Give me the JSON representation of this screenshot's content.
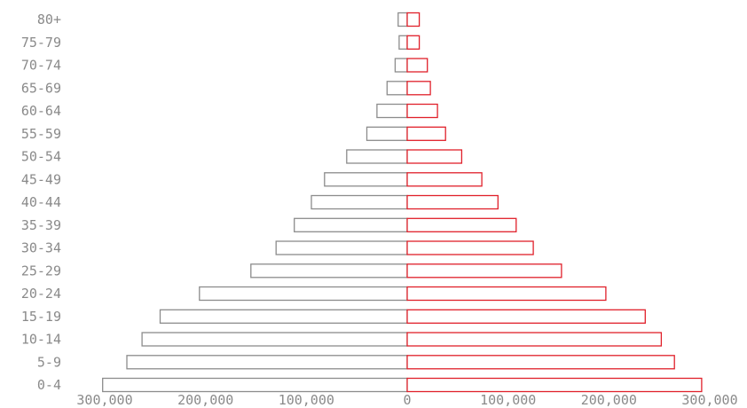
{
  "chart_data": {
    "type": "bar",
    "orientation": "horizontal",
    "layout": "population-pyramid",
    "categories": [
      "0-4",
      "5-9",
      "10-14",
      "15-19",
      "20-24",
      "25-29",
      "30-34",
      "35-39",
      "40-44",
      "45-49",
      "50-54",
      "55-59",
      "60-64",
      "65-69",
      "70-74",
      "75-79",
      "80+"
    ],
    "series": [
      {
        "side": "left",
        "color": "#8c8c8c",
        "values": [
          302000,
          278000,
          263000,
          245000,
          206000,
          155000,
          130000,
          112000,
          95000,
          82000,
          60000,
          40000,
          30000,
          20000,
          12000,
          8000,
          9000
        ]
      },
      {
        "side": "right",
        "color": "#e0202a",
        "values": [
          292000,
          265000,
          252000,
          236000,
          197000,
          153000,
          125000,
          108000,
          90000,
          74000,
          54000,
          38000,
          30000,
          23000,
          20000,
          12000,
          12000
        ]
      }
    ],
    "xlim": [
      -300000,
      300000
    ],
    "xticks": [
      {
        "value": -300000,
        "label": "300,000"
      },
      {
        "value": -200000,
        "label": "200,000"
      },
      {
        "value": -100000,
        "label": "100,000"
      },
      {
        "value": 0,
        "label": "0"
      },
      {
        "value": 100000,
        "label": "100,000"
      },
      {
        "value": 200000,
        "label": "200,000"
      },
      {
        "value": 300000,
        "label": "300,000"
      }
    ],
    "title": "",
    "xlabel": "",
    "ylabel": "",
    "grid": false,
    "legend": "none"
  }
}
